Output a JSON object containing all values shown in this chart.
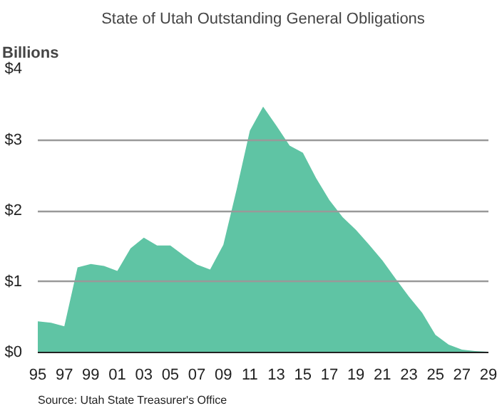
{
  "chart_data": {
    "type": "area",
    "title": "State of Utah Outstanding General Obligations",
    "ylabel": "Billions",
    "annotations": [
      "Source: Utah State Treasurer's Office"
    ],
    "x": [
      1995,
      1996,
      1997,
      1998,
      1999,
      2000,
      2001,
      2002,
      2003,
      2004,
      2005,
      2006,
      2007,
      2008,
      2009,
      2010,
      2011,
      2012,
      2013,
      2014,
      2015,
      2016,
      2017,
      2018,
      2019,
      2020,
      2021,
      2022,
      2023,
      2024,
      2025,
      2026,
      2027,
      2028,
      2029
    ],
    "series": [
      {
        "color": "#5fc4a4",
        "values": [
          0.44,
          0.42,
          0.37,
          1.2,
          1.25,
          1.22,
          1.15,
          1.47,
          1.62,
          1.51,
          1.51,
          1.37,
          1.24,
          1.17,
          1.52,
          2.3,
          3.13,
          3.47,
          3.2,
          2.92,
          2.82,
          2.46,
          2.15,
          1.91,
          1.73,
          1.52,
          1.3,
          1.04,
          0.79,
          0.56,
          0.25,
          0.11,
          0.04,
          0.02,
          0.01
        ]
      }
    ],
    "xlim": [
      1995,
      2029
    ],
    "xticks": [
      {
        "value": 1995,
        "label": "95"
      },
      {
        "value": 1997,
        "label": "97"
      },
      {
        "value": 1999,
        "label": "99"
      },
      {
        "value": 2001,
        "label": "01"
      },
      {
        "value": 2003,
        "label": "03"
      },
      {
        "value": 2005,
        "label": "05"
      },
      {
        "value": 2007,
        "label": "07"
      },
      {
        "value": 2009,
        "label": "09"
      },
      {
        "value": 2011,
        "label": "11"
      },
      {
        "value": 2013,
        "label": "13"
      },
      {
        "value": 2015,
        "label": "15"
      },
      {
        "value": 2017,
        "label": "17"
      },
      {
        "value": 2019,
        "label": "19"
      },
      {
        "value": 2021,
        "label": "21"
      },
      {
        "value": 2023,
        "label": "23"
      },
      {
        "value": 2025,
        "label": "25"
      },
      {
        "value": 2027,
        "label": "27"
      },
      {
        "value": 2029,
        "label": "29"
      }
    ],
    "ylim": [
      0,
      4
    ],
    "yticks": [
      {
        "value": 0,
        "label": "$0"
      },
      {
        "value": 1,
        "label": "$1"
      },
      {
        "value": 2,
        "label": "$2"
      },
      {
        "value": 3,
        "label": "$3"
      },
      {
        "value": 4,
        "label": "$4"
      }
    ],
    "grid": "y"
  }
}
